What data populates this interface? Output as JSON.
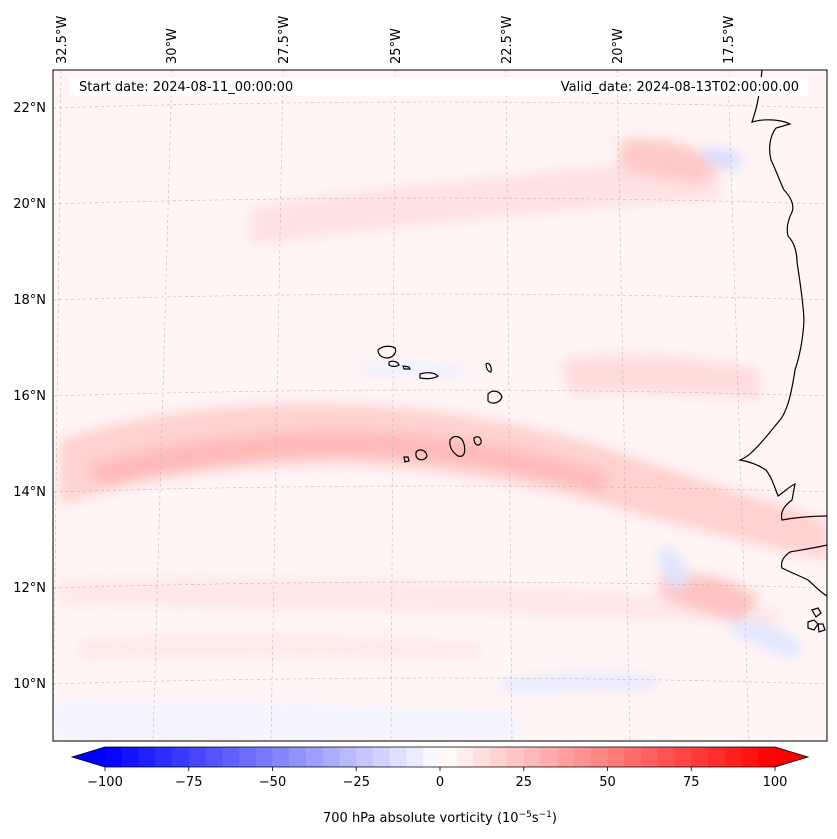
{
  "map": {
    "header": {
      "start_date": "Start date: 2024-08-11_00:00:00",
      "valid_date": "Valid_date: 2024-08-13T02:00:00.00"
    },
    "longitude_labels": [
      "32.5°W",
      "30°W",
      "27.5°W",
      "25°W",
      "22.5°W",
      "20°W",
      "17.5°W"
    ],
    "latitude_labels": [
      "22°N",
      "20°N",
      "18°N",
      "16°N",
      "14°N",
      "12°N",
      "10°N"
    ],
    "lon_values": [
      -32.5,
      -30,
      -27.5,
      -25,
      -22.5,
      -20,
      -17.5
    ],
    "lat_values": [
      22,
      20,
      18,
      16,
      14,
      12,
      10
    ],
    "extent": {
      "lon_min": -33.5,
      "lon_max": -15.5,
      "lat_min": 9,
      "lat_max": 22.8
    },
    "features": [
      "Cabo Verde islands",
      "West African coastline"
    ]
  },
  "colorbar": {
    "label": "700 hPa absolute vorticity (10",
    "label_exp1": "−5",
    "label_mid": "s",
    "label_exp2": "−1",
    "label_end": ")",
    "tick_labels": [
      "−100",
      "−75",
      "−50",
      "−25",
      "0",
      "25",
      "50",
      "75",
      "100"
    ],
    "tick_values": [
      -100,
      -75,
      -50,
      -25,
      0,
      25,
      50,
      75,
      100
    ],
    "vmin": -100,
    "vmax": 100,
    "negative_color": "#0000ff",
    "positive_color": "#ff0000",
    "neutral_color": "#ffffff"
  }
}
